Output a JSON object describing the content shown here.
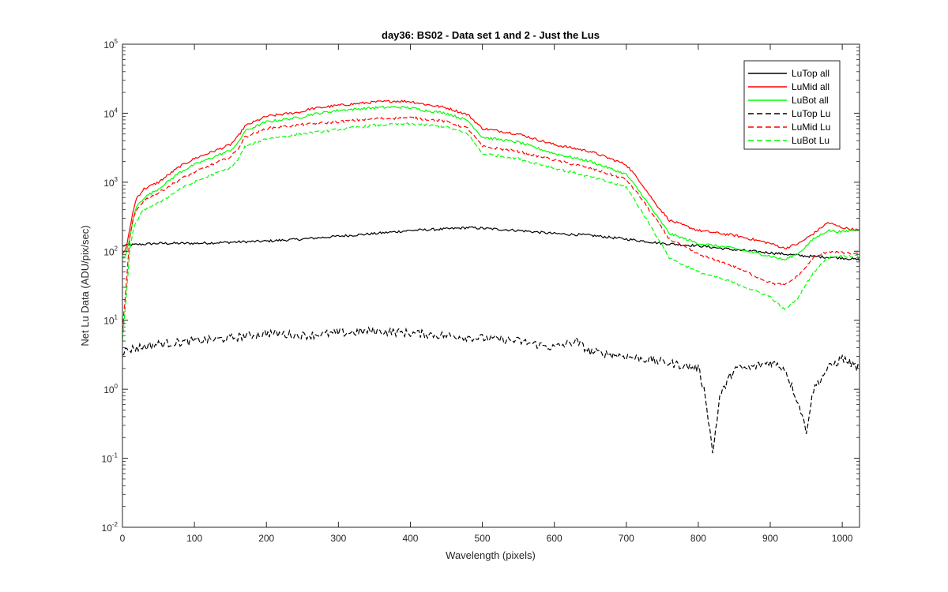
{
  "chart_data": {
    "type": "line",
    "title": "day36: BS02 - Data set 1 and 2 - Just the Lus",
    "xlabel": "Wavelength (pixels)",
    "ylabel": "Net Lu Data (ADU/pix/sec)",
    "xlim": [
      0,
      1024
    ],
    "ylim": [
      0.01,
      100000
    ],
    "yscale": "log",
    "x_ticks": [
      0,
      100,
      200,
      300,
      400,
      500,
      600,
      700,
      800,
      900,
      1000
    ],
    "y_ticks": [
      {
        "base": "10",
        "exp": "-2",
        "value": 0.01
      },
      {
        "base": "10",
        "exp": "-1",
        "value": 0.1
      },
      {
        "base": "10",
        "exp": "0",
        "value": 1
      },
      {
        "base": "10",
        "exp": "1",
        "value": 10
      },
      {
        "base": "10",
        "exp": "2",
        "value": 100
      },
      {
        "base": "10",
        "exp": "3",
        "value": 1000
      },
      {
        "base": "10",
        "exp": "4",
        "value": 10000
      },
      {
        "base": "10",
        "exp": "5",
        "value": 100000
      }
    ],
    "legend_position": "top-right",
    "series": [
      {
        "name": "LuTop  all",
        "color": "#000000",
        "dash": "solid",
        "x": [
          0,
          20,
          50,
          100,
          150,
          200,
          250,
          300,
          350,
          400,
          450,
          480,
          500,
          550,
          600,
          650,
          700,
          750,
          800,
          850,
          900,
          950,
          1000,
          1024
        ],
        "y": [
          120,
          125,
          130,
          130,
          135,
          140,
          150,
          165,
          180,
          200,
          210,
          220,
          215,
          200,
          180,
          170,
          150,
          130,
          120,
          105,
          95,
          85,
          80,
          75
        ]
      },
      {
        "name": "LuMid  all",
        "color": "#ff0000",
        "dash": "solid",
        "x": [
          0,
          5,
          10,
          15,
          20,
          30,
          50,
          80,
          100,
          130,
          150,
          160,
          170,
          200,
          250,
          260,
          300,
          350,
          380,
          400,
          420,
          450,
          480,
          500,
          550,
          600,
          650,
          700,
          720,
          740,
          760,
          800,
          850,
          900,
          920,
          940,
          960,
          980,
          1000,
          1024
        ],
        "y": [
          90,
          110,
          200,
          400,
          600,
          800,
          1000,
          1700,
          2200,
          2900,
          3500,
          4500,
          6500,
          9000,
          10500,
          11500,
          13000,
          14500,
          15000,
          14800,
          13500,
          12000,
          9500,
          6000,
          5000,
          3500,
          2800,
          1800,
          1000,
          500,
          280,
          200,
          170,
          130,
          110,
          130,
          180,
          260,
          220,
          200
        ]
      },
      {
        "name": "LuBot  all",
        "color": "#00ff00",
        "dash": "solid",
        "x": [
          0,
          5,
          10,
          15,
          20,
          30,
          50,
          80,
          100,
          130,
          150,
          160,
          170,
          200,
          250,
          260,
          300,
          350,
          380,
          400,
          420,
          450,
          480,
          500,
          550,
          600,
          650,
          700,
          720,
          740,
          760,
          800,
          850,
          900,
          920,
          940,
          960,
          980,
          1000,
          1024
        ],
        "y": [
          80,
          90,
          150,
          300,
          450,
          600,
          800,
          1400,
          1800,
          2400,
          2900,
          3600,
          5500,
          7500,
          8800,
          9500,
          11000,
          12000,
          12300,
          12000,
          11000,
          10000,
          7800,
          4500,
          3800,
          2600,
          2000,
          1300,
          700,
          350,
          180,
          130,
          110,
          85,
          75,
          95,
          150,
          200,
          190,
          210
        ]
      },
      {
        "name": "LuTop  Lu",
        "color": "#000000",
        "dash": "dashed",
        "x": [
          0,
          20,
          50,
          100,
          150,
          200,
          250,
          300,
          350,
          400,
          450,
          500,
          550,
          600,
          630,
          650,
          700,
          750,
          800,
          810,
          820,
          830,
          850,
          870,
          900,
          920,
          940,
          950,
          960,
          980,
          1000,
          1024
        ],
        "y": [
          3.5,
          4,
          4.5,
          5,
          5.5,
          6.5,
          6,
          6.5,
          7,
          6.5,
          6,
          5.5,
          5,
          4,
          5,
          3.5,
          3,
          2.5,
          2,
          0.8,
          0.12,
          0.8,
          2,
          2,
          2.5,
          2,
          0.6,
          0.25,
          1,
          2,
          2.8,
          2
        ]
      },
      {
        "name": "LuMid  Lu",
        "color": "#ff0000",
        "dash": "dashed",
        "x": [
          0,
          5,
          10,
          15,
          20,
          30,
          50,
          80,
          100,
          130,
          150,
          160,
          170,
          200,
          250,
          300,
          350,
          400,
          420,
          450,
          480,
          500,
          550,
          600,
          650,
          700,
          720,
          740,
          760,
          800,
          850,
          900,
          920,
          940,
          960,
          980,
          1000,
          1024
        ],
        "y": [
          7,
          30,
          150,
          300,
          400,
          550,
          700,
          1100,
          1400,
          1900,
          2300,
          3000,
          4500,
          6000,
          6800,
          7500,
          8300,
          8600,
          8200,
          7600,
          6000,
          3300,
          2800,
          2100,
          1600,
          1100,
          600,
          300,
          150,
          90,
          60,
          35,
          32,
          45,
          80,
          100,
          95,
          90
        ]
      },
      {
        "name": "LuBot  Lu",
        "color": "#00ff00",
        "dash": "dashed",
        "x": [
          0,
          5,
          10,
          15,
          20,
          30,
          50,
          80,
          100,
          130,
          150,
          160,
          170,
          200,
          250,
          300,
          350,
          400,
          420,
          450,
          480,
          500,
          550,
          600,
          650,
          700,
          720,
          740,
          760,
          800,
          850,
          900,
          920,
          940,
          960,
          980,
          1000,
          1024
        ],
        "y": [
          5,
          20,
          100,
          200,
          280,
          400,
          500,
          800,
          1000,
          1350,
          1600,
          2100,
          3200,
          4300,
          5000,
          5800,
          6700,
          7000,
          6800,
          6300,
          5000,
          2600,
          2200,
          1600,
          1200,
          850,
          400,
          180,
          80,
          50,
          35,
          22,
          14,
          22,
          50,
          80,
          85,
          85
        ]
      }
    ]
  }
}
